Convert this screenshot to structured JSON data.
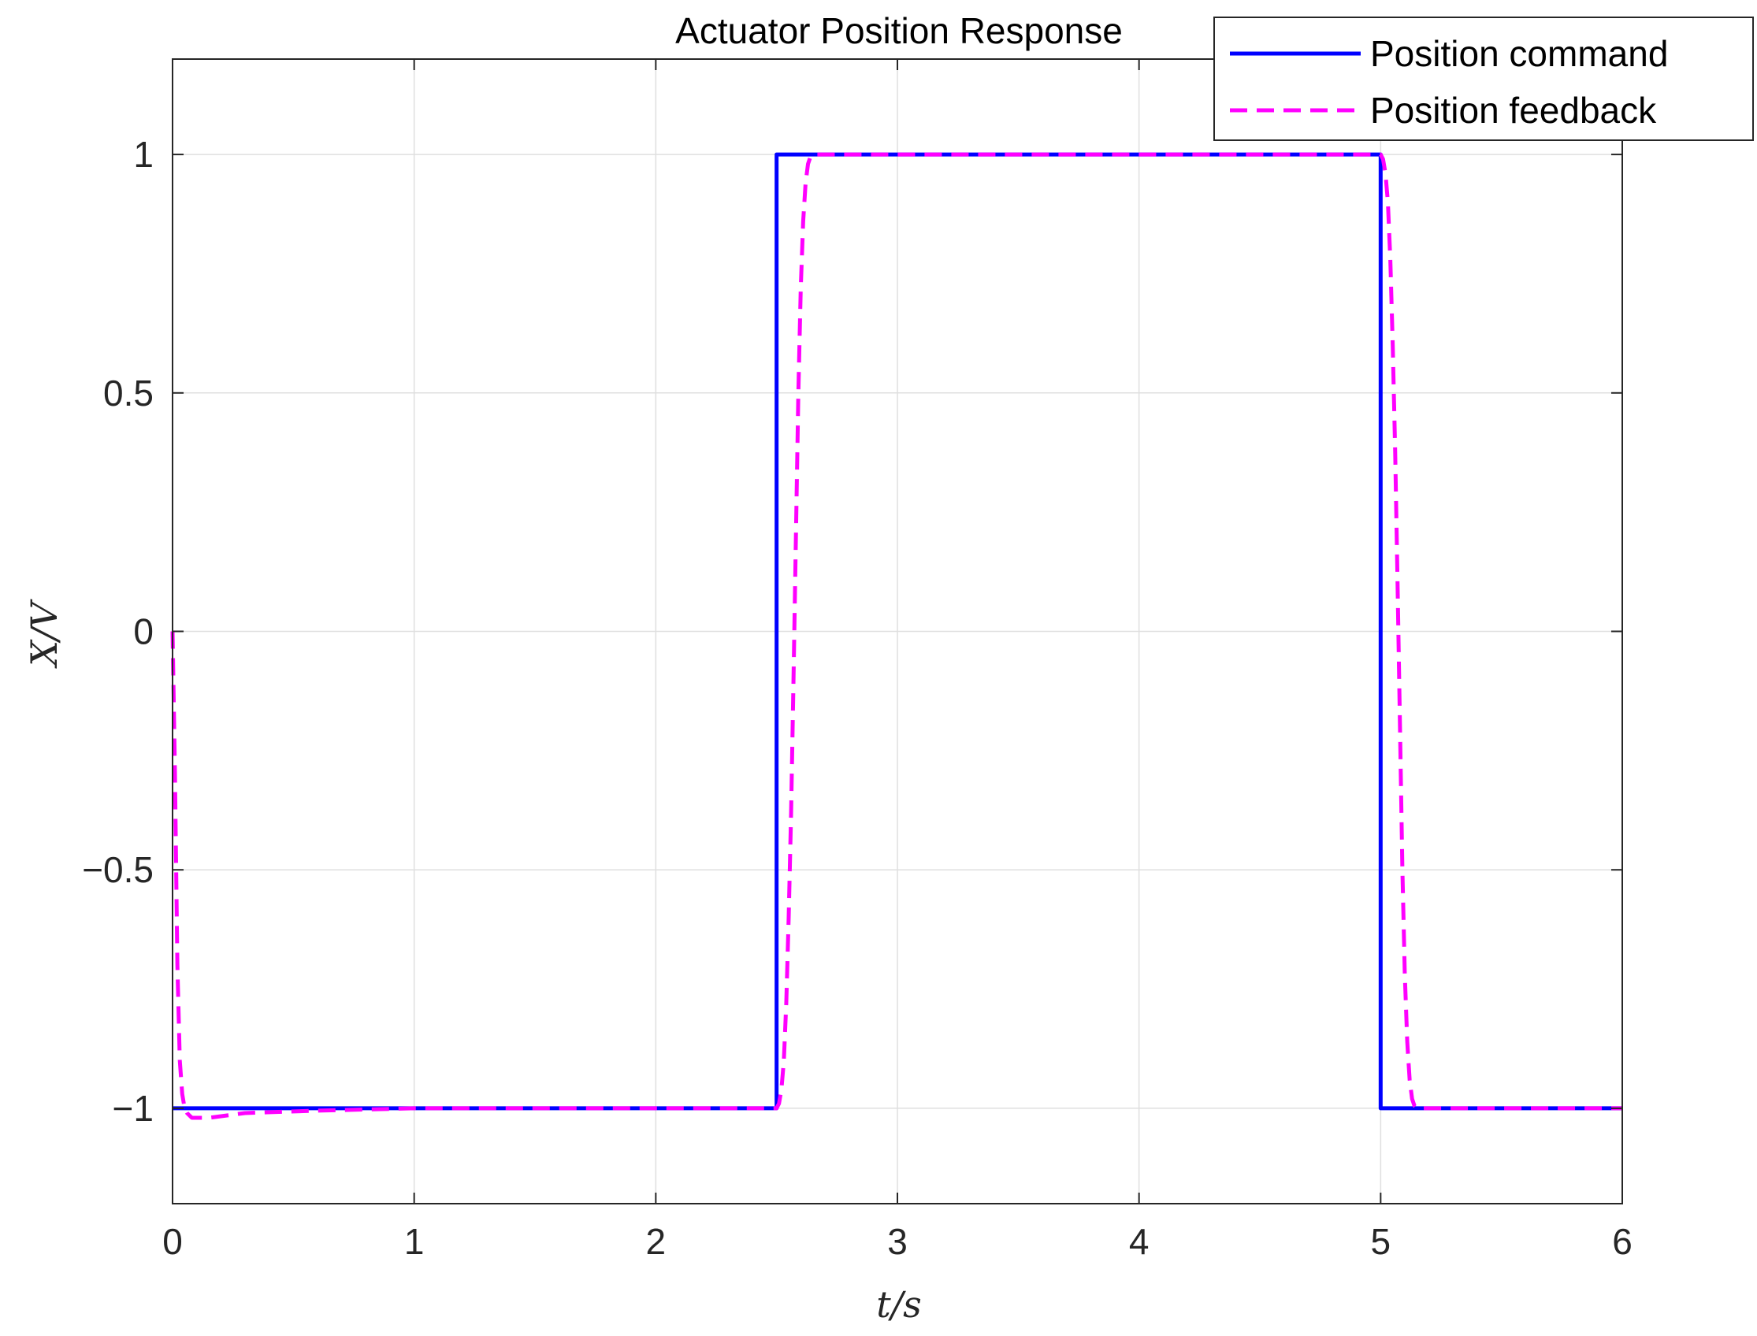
{
  "chart_data": {
    "type": "line",
    "title": "Actuator Position Response",
    "xlabel": "t/s",
    "ylabel": "X/V",
    "xlim": [
      0,
      6
    ],
    "ylim": [
      -1.2,
      1.2
    ],
    "x_ticks": [
      0,
      1,
      2,
      3,
      4,
      5,
      6
    ],
    "x_tick_labels": [
      "0",
      "1",
      "2",
      "3",
      "4",
      "5",
      "6"
    ],
    "y_ticks": [
      -1,
      -0.5,
      0,
      0.5,
      1
    ],
    "y_tick_labels": [
      "−1",
      "−0.5",
      "0",
      "0.5",
      "1"
    ],
    "grid": true,
    "legend_position": "top-right",
    "series": [
      {
        "name": "Position command",
        "color": "#0000ff",
        "line_style": "solid",
        "x": [
          0,
          2.5,
          2.5,
          5.0,
          5.0,
          6.0
        ],
        "y": [
          -1,
          -1,
          1,
          1,
          -1,
          -1
        ]
      },
      {
        "name": "Position feedback",
        "color": "#ff00ff",
        "line_style": "dashed",
        "x": [
          0,
          0.01,
          0.02,
          0.03,
          0.04,
          0.05,
          0.06,
          0.08,
          0.1,
          0.15,
          0.3,
          0.6,
          1.0,
          2.0,
          2.5,
          2.51,
          2.52,
          2.53,
          2.54,
          2.55,
          2.56,
          2.57,
          2.58,
          2.59,
          2.6,
          2.61,
          2.62,
          2.63,
          2.64,
          2.65,
          2.7,
          3.0,
          4.0,
          5.0,
          5.01,
          5.02,
          5.03,
          5.04,
          5.05,
          5.06,
          5.07,
          5.08,
          5.09,
          5.1,
          5.11,
          5.12,
          5.13,
          5.14,
          5.15,
          5.2,
          5.5,
          6.0
        ],
        "y": [
          0,
          -0.3,
          -0.7,
          -0.9,
          -0.97,
          -1.0,
          -1.01,
          -1.02,
          -1.02,
          -1.02,
          -1.01,
          -1.005,
          -1.0,
          -1.0,
          -1.0,
          -0.99,
          -0.96,
          -0.9,
          -0.78,
          -0.6,
          -0.38,
          -0.1,
          0.2,
          0.5,
          0.72,
          0.86,
          0.94,
          0.98,
          0.995,
          1.0,
          1.0,
          1.0,
          1.0,
          1.0,
          0.99,
          0.96,
          0.9,
          0.78,
          0.6,
          0.38,
          0.1,
          -0.2,
          -0.5,
          -0.72,
          -0.86,
          -0.94,
          -0.98,
          -0.995,
          -1.0,
          -1.0,
          -1.0,
          -1.0
        ]
      }
    ]
  }
}
